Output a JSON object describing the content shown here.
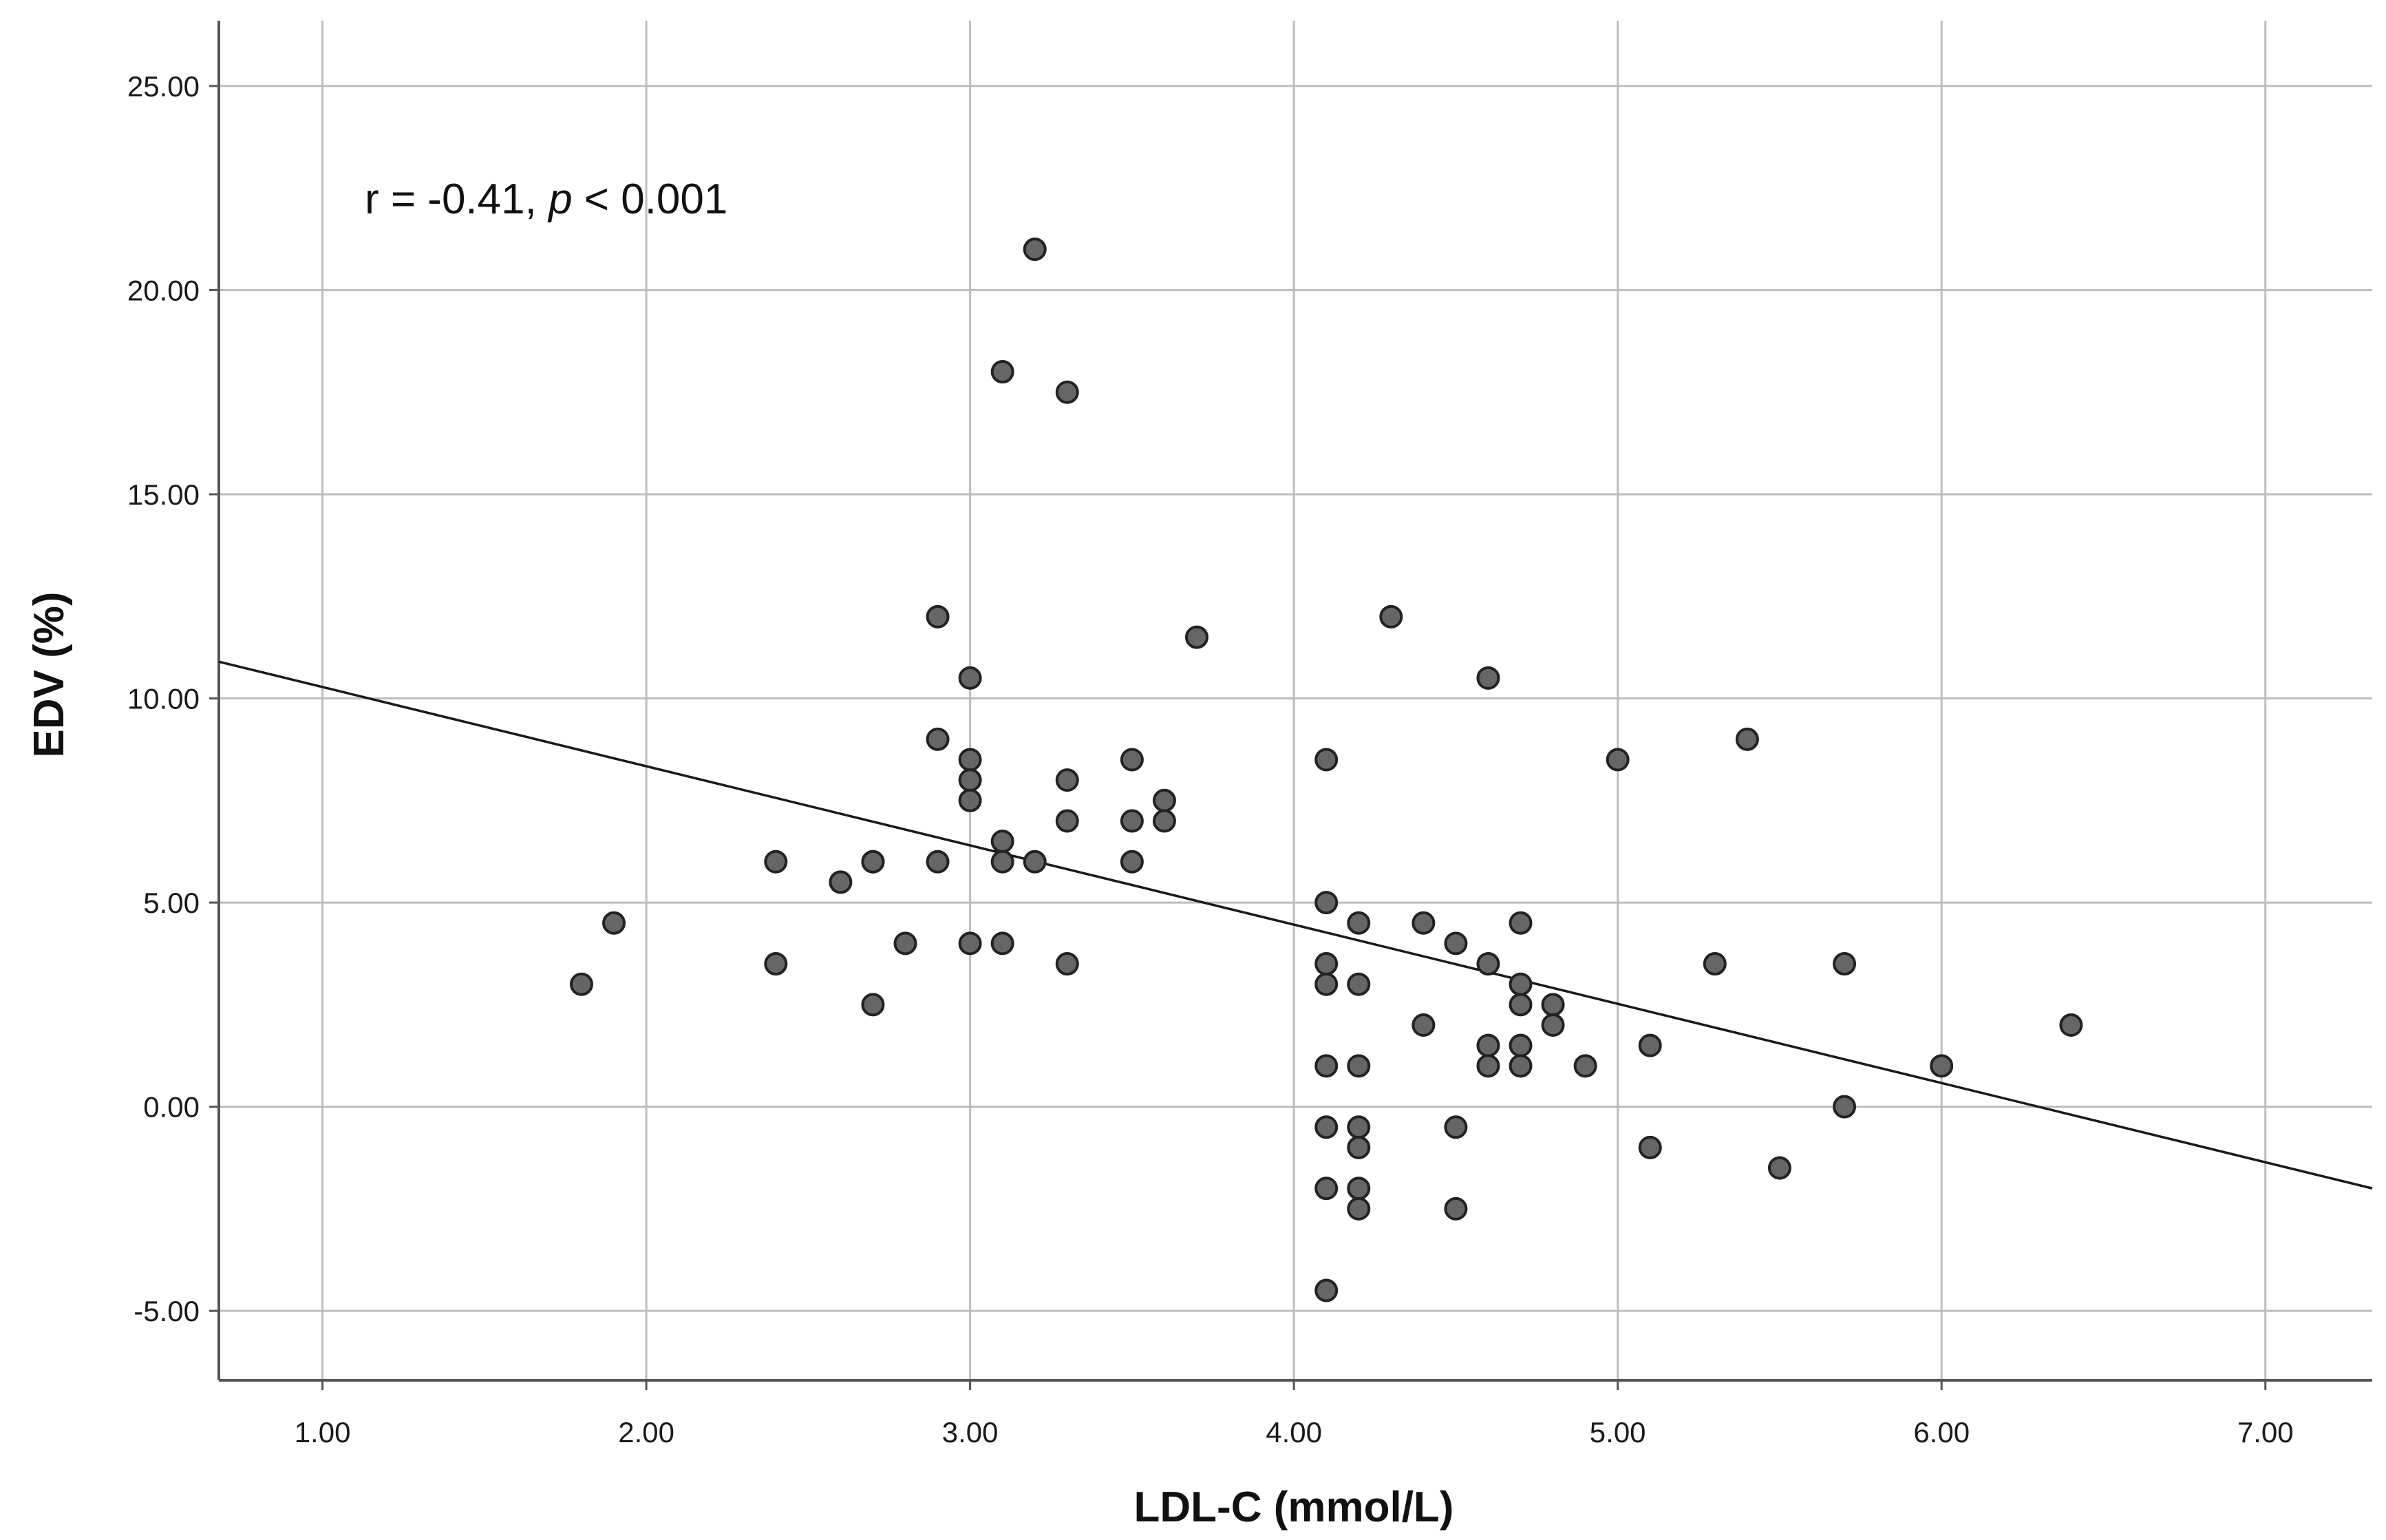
{
  "chart_data": {
    "type": "scatter",
    "title": "",
    "xlabel": "LDL-C (mmol/L)",
    "ylabel": "EDV (%)",
    "xlim": [
      0.68,
      7.33
    ],
    "ylim": [
      -6.7,
      26.6
    ],
    "x_ticks": [
      1,
      2,
      3,
      4,
      5,
      6,
      7
    ],
    "x_tick_labels": [
      "1.00",
      "2.00",
      "3.00",
      "4.00",
      "5.00",
      "6.00",
      "7.00"
    ],
    "y_ticks": [
      -5,
      0,
      5,
      10,
      15,
      20,
      25
    ],
    "y_tick_labels": [
      "-5.00",
      "0.00",
      "5.00",
      "10.00",
      "15.00",
      "20.00",
      "25.00"
    ],
    "grid": true,
    "annotation": {
      "prefix": "r = -0.41, ",
      "italic": "p",
      "suffix": " < 0.001"
    },
    "regression_line": {
      "x": [
        0.68,
        7.33
      ],
      "y": [
        10.9,
        -2.0
      ]
    },
    "colors": {
      "marker_fill": "#666666",
      "marker_stroke": "#222222",
      "grid": "#bdbdbd",
      "axis": "#555555",
      "line": "#1a1a1a"
    },
    "points": [
      [
        1.8,
        3.0
      ],
      [
        1.9,
        4.5
      ],
      [
        2.4,
        6.0
      ],
      [
        2.4,
        3.5
      ],
      [
        2.6,
        5.5
      ],
      [
        2.7,
        6.0
      ],
      [
        2.7,
        6.0
      ],
      [
        2.7,
        2.5
      ],
      [
        2.8,
        4.0
      ],
      [
        2.9,
        12.0
      ],
      [
        2.9,
        9.0
      ],
      [
        2.9,
        6.0
      ],
      [
        3.0,
        10.5
      ],
      [
        3.0,
        8.5
      ],
      [
        3.0,
        8.0
      ],
      [
        3.0,
        7.5
      ],
      [
        3.0,
        4.0
      ],
      [
        3.1,
        18.0
      ],
      [
        3.1,
        6.5
      ],
      [
        3.1,
        6.0
      ],
      [
        3.1,
        4.0
      ],
      [
        3.2,
        21.0
      ],
      [
        3.2,
        6.0
      ],
      [
        3.3,
        17.5
      ],
      [
        3.3,
        8.0
      ],
      [
        3.3,
        7.0
      ],
      [
        3.3,
        3.5
      ],
      [
        3.5,
        8.5
      ],
      [
        3.5,
        7.0
      ],
      [
        3.5,
        6.0
      ],
      [
        3.6,
        7.5
      ],
      [
        3.6,
        7.0
      ],
      [
        3.7,
        11.5
      ],
      [
        4.1,
        8.5
      ],
      [
        4.1,
        5.0
      ],
      [
        4.1,
        3.5
      ],
      [
        4.1,
        3.0
      ],
      [
        4.1,
        1.0
      ],
      [
        4.1,
        -0.5
      ],
      [
        4.1,
        -2.0
      ],
      [
        4.1,
        -4.5
      ],
      [
        4.2,
        4.5
      ],
      [
        4.2,
        3.0
      ],
      [
        4.2,
        1.0
      ],
      [
        4.2,
        -0.5
      ],
      [
        4.2,
        -1.0
      ],
      [
        4.2,
        -2.0
      ],
      [
        4.2,
        -2.5
      ],
      [
        4.3,
        12.0
      ],
      [
        4.4,
        4.5
      ],
      [
        4.4,
        2.0
      ],
      [
        4.5,
        4.0
      ],
      [
        4.5,
        -0.5
      ],
      [
        4.5,
        -2.5
      ],
      [
        4.6,
        10.5
      ],
      [
        4.6,
        3.5
      ],
      [
        4.6,
        1.5
      ],
      [
        4.6,
        1.0
      ],
      [
        4.7,
        4.5
      ],
      [
        4.7,
        3.0
      ],
      [
        4.7,
        2.5
      ],
      [
        4.7,
        1.5
      ],
      [
        4.7,
        1.0
      ],
      [
        4.8,
        2.5
      ],
      [
        4.8,
        2.0
      ],
      [
        4.9,
        1.0
      ],
      [
        5.0,
        8.5
      ],
      [
        5.1,
        1.5
      ],
      [
        5.1,
        -1.0
      ],
      [
        5.3,
        3.5
      ],
      [
        5.4,
        9.0
      ],
      [
        5.5,
        -1.5
      ],
      [
        5.7,
        3.5
      ],
      [
        5.7,
        0.0
      ],
      [
        6.0,
        1.0
      ],
      [
        6.4,
        2.0
      ]
    ]
  }
}
